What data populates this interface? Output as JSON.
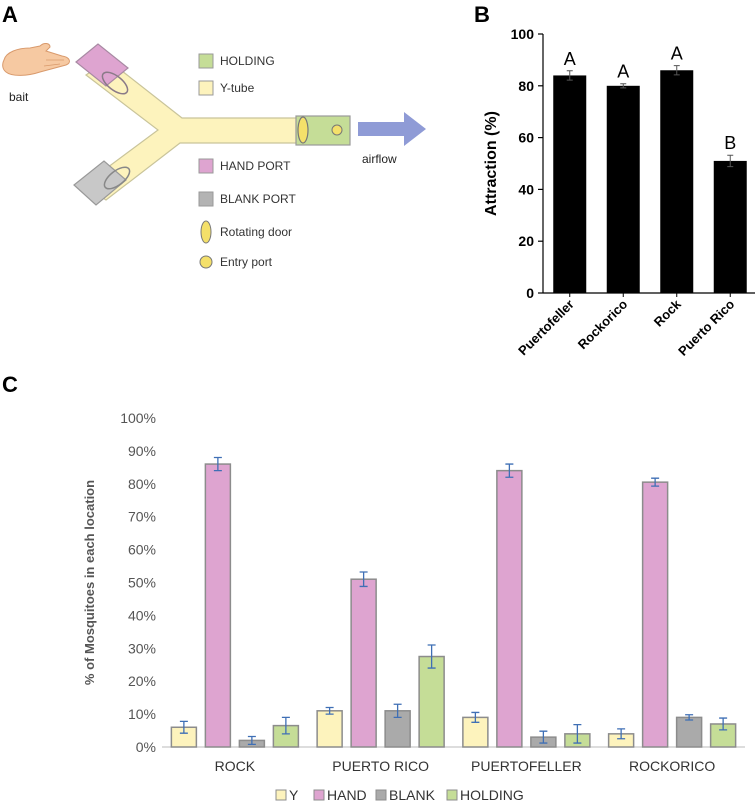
{
  "panels": {
    "a": "A",
    "b": "B",
    "c": "C"
  },
  "diagram": {
    "bait_label": "bait",
    "airflow_label": "airflow",
    "legend": [
      {
        "key": "holding",
        "label": "HOLDING",
        "color": "#c5dd97",
        "shape": "rect"
      },
      {
        "key": "ytube",
        "label": "Y-tube",
        "color": "#fdf3bd",
        "shape": "rect"
      },
      {
        "key": "hand",
        "label": "HAND PORT",
        "color": "#dea4d0",
        "shape": "rect"
      },
      {
        "key": "blank",
        "label": "BLANK PORT",
        "color": "#b3b3b3",
        "shape": "rect"
      },
      {
        "key": "door",
        "label": "Rotating door",
        "color": "#f4e06a",
        "shape": "ellipse"
      },
      {
        "key": "entry",
        "label": "Entry port",
        "color": "#f4e06a",
        "shape": "circle"
      }
    ],
    "colors": {
      "tube": "#fdf3bd",
      "hand": "#dea4d0",
      "blank": "#c8c8c8",
      "holding": "#c5dd97",
      "arrow": "#8f9bd6",
      "skin": "#f6c9a2"
    }
  },
  "chart_data": [
    {
      "id": "B",
      "type": "bar",
      "title": "",
      "xlabel": "",
      "ylabel": "Attraction (%)",
      "ylim": [
        0,
        100
      ],
      "yticks": [
        0,
        20,
        40,
        60,
        80,
        100
      ],
      "categories": [
        "Puertofeller",
        "Rockorico",
        "Rock",
        "Puerto Rico"
      ],
      "values": [
        84,
        80,
        86,
        51
      ],
      "errors": [
        1.8,
        0.8,
        1.8,
        2.2
      ],
      "significance_letters": [
        "A",
        "A",
        "A",
        "B"
      ],
      "color": "#000000"
    },
    {
      "id": "C",
      "type": "bar",
      "title": "",
      "xlabel": "",
      "ylabel": "% of Mosquitoes in each location",
      "ylim": [
        0,
        100
      ],
      "yticks": [
        0,
        10,
        20,
        30,
        40,
        50,
        60,
        70,
        80,
        90,
        100
      ],
      "ytick_labels": [
        "0%",
        "10%",
        "20%",
        "30%",
        "40%",
        "50%",
        "60%",
        "70%",
        "80%",
        "90%",
        "100%"
      ],
      "categories": [
        "ROCK",
        "PUERTO RICO",
        "PUERTOFELLER",
        "ROCKORICO"
      ],
      "series": [
        {
          "name": "Y",
          "color": "#fdf3bd",
          "values": [
            6,
            11,
            9,
            4
          ],
          "errors": [
            1.8,
            1,
            1.5,
            1.5
          ]
        },
        {
          "name": "HAND",
          "color": "#dea4d0",
          "values": [
            86,
            51,
            84,
            80.5
          ],
          "errors": [
            2,
            2.2,
            2,
            1.2
          ]
        },
        {
          "name": "BLANK",
          "color": "#aaaaaa",
          "values": [
            2,
            11,
            3,
            9
          ],
          "errors": [
            1.2,
            2,
            1.8,
            0.8
          ]
        },
        {
          "name": "HOLDING",
          "color": "#c5dd97",
          "values": [
            6.5,
            27.5,
            4,
            7
          ],
          "errors": [
            2.5,
            3.5,
            2.8,
            1.8
          ]
        }
      ],
      "legend_position": "bottom"
    }
  ]
}
